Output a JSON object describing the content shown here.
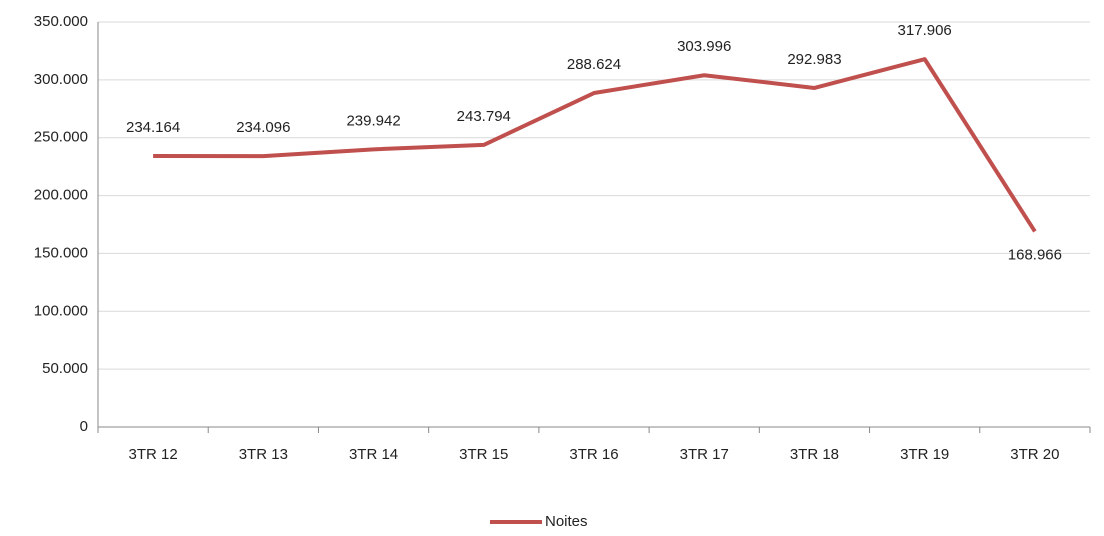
{
  "chart_data": {
    "type": "line",
    "categories": [
      "3TR 12",
      "3TR 13",
      "3TR 14",
      "3TR 15",
      "3TR 16",
      "3TR 17",
      "3TR 18",
      "3TR 19",
      "3TR 20"
    ],
    "series": [
      {
        "name": "Noites",
        "color": "#c0504d",
        "values": [
          234164,
          234096,
          239942,
          243794,
          288624,
          303996,
          292983,
          317906,
          168966
        ],
        "value_labels": [
          "234.164",
          "234.096",
          "239.942",
          "243.794",
          "288.624",
          "303.996",
          "292.983",
          "317.906",
          "168.966"
        ]
      }
    ],
    "ylim": [
      0,
      350000
    ],
    "yticks": [
      0,
      {
        "value": 50000,
        "label": "50.000"
      },
      {
        "value": 100000,
        "label": "100.000"
      },
      {
        "value": 150000,
        "label": "150.000"
      },
      {
        "value": 200000,
        "label": "200.000"
      },
      {
        "value": 250000,
        "label": "250.000"
      },
      {
        "value": 300000,
        "label": "300.000"
      },
      {
        "value": 350000,
        "label": "350.000"
      }
    ],
    "grid": true,
    "legend": "bottom"
  }
}
